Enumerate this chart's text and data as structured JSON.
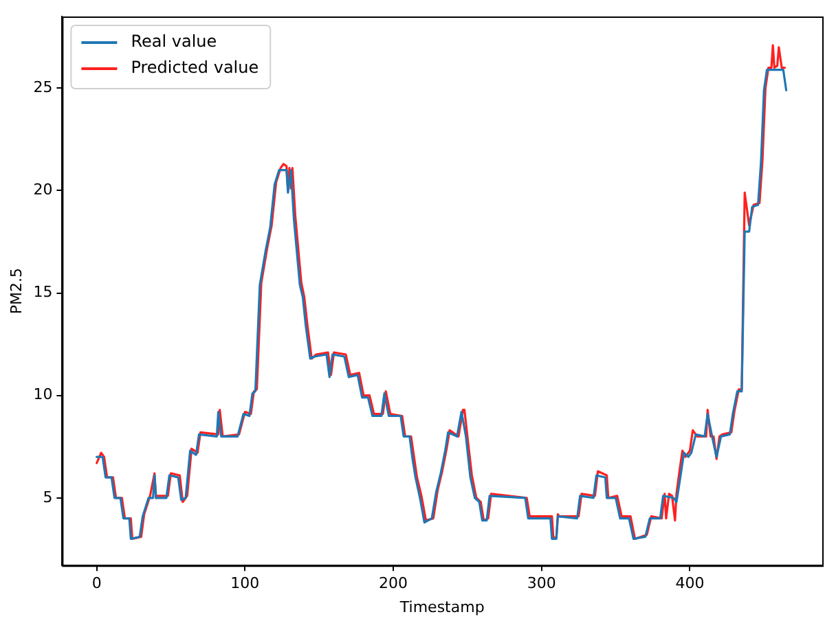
{
  "chart_data": {
    "type": "line",
    "xlabel": "Timestamp",
    "ylabel": "PM2.5",
    "xlim": [
      -23.3,
      489.3
    ],
    "ylim": [
      1.7,
      28.5
    ],
    "xticks": [
      0,
      100,
      200,
      300,
      400
    ],
    "yticks": [
      5,
      10,
      15,
      20,
      25
    ],
    "grid": false,
    "legend": "top left",
    "marker": "none",
    "line_style": "solid",
    "series": [
      {
        "name": "Real value",
        "color": "#1f77b4",
        "x": [
          0,
          4,
          6,
          10,
          12,
          16,
          18,
          22,
          23,
          29,
          31,
          35,
          38,
          39,
          40,
          47,
          49,
          55,
          57,
          60,
          63,
          67,
          69,
          81,
          82,
          84,
          95,
          99,
          103,
          105,
          107,
          110,
          114,
          117,
          120,
          123,
          128,
          129,
          131,
          133,
          137,
          139,
          141,
          144,
          147,
          155,
          157,
          159,
          167,
          170,
          176,
          179,
          183,
          186,
          192,
          194,
          197,
          205,
          207,
          211,
          213,
          215,
          218,
          221,
          226,
          229,
          232,
          235,
          237,
          243,
          246,
          249,
          252,
          255,
          258,
          260,
          263,
          265,
          289,
          291,
          306,
          307,
          310,
          311,
          324,
          326,
          335,
          337,
          343,
          344,
          350,
          353,
          359,
          362,
          370,
          373,
          380,
          382,
          389,
          391,
          394,
          396,
          399,
          401,
          404,
          410,
          412,
          415,
          418,
          421,
          427,
          429,
          432,
          435,
          437,
          440,
          442,
          446,
          448,
          450,
          452,
          463,
          465
        ],
        "values": [
          7,
          7,
          6,
          6,
          5,
          5,
          4,
          4,
          3,
          3.1,
          4.1,
          5,
          5,
          6.1,
          5,
          5,
          6.1,
          6,
          4.9,
          5,
          7.3,
          7.1,
          8.1,
          8,
          9.2,
          8,
          8,
          9.1,
          9,
          10.1,
          10.2,
          15.4,
          17.1,
          18.2,
          20.3,
          21,
          21,
          19.9,
          21,
          18.6,
          15.4,
          14.8,
          13.4,
          11.8,
          11.9,
          12,
          10.9,
          12,
          11.9,
          10.9,
          11,
          9.9,
          9.9,
          9,
          9,
          10.1,
          9,
          9,
          8,
          8,
          6.9,
          6,
          5,
          3.8,
          4,
          5.3,
          6.2,
          7.3,
          8.2,
          8,
          9.2,
          8,
          6,
          5,
          4.8,
          3.9,
          3.9,
          5.1,
          5,
          4,
          4,
          3,
          3,
          4.1,
          4,
          5.1,
          5,
          6.1,
          6,
          5,
          5,
          4,
          4,
          3,
          3.1,
          4,
          4,
          5.1,
          5,
          4.8,
          6.2,
          7.2,
          7,
          7.2,
          8.1,
          8,
          9.1,
          8,
          7,
          8,
          8.1,
          9.1,
          10.2,
          10.2,
          18,
          18,
          19.2,
          19.3,
          21.4,
          24.9,
          25.9,
          25.9,
          24.9
        ]
      },
      {
        "name": "Predicted value",
        "color": "#ff2020",
        "x": [
          0,
          3,
          5,
          7,
          11,
          13,
          17,
          19,
          23,
          24,
          30,
          32,
          36,
          39,
          40,
          41,
          48,
          50,
          56,
          58,
          61,
          64,
          68,
          70,
          82,
          83,
          85,
          96,
          100,
          104,
          106,
          108,
          111,
          115,
          118,
          121,
          124,
          126,
          128,
          129,
          130,
          131,
          132,
          134,
          138,
          140,
          142,
          145,
          148,
          156,
          158,
          160,
          168,
          171,
          177,
          180,
          184,
          187,
          193,
          195,
          198,
          206,
          208,
          212,
          214,
          216,
          219,
          222,
          227,
          230,
          233,
          236,
          238,
          244,
          247,
          248,
          250,
          253,
          256,
          259,
          261,
          264,
          266,
          290,
          292,
          307,
          308,
          310,
          311,
          312,
          325,
          327,
          336,
          338,
          344,
          345,
          351,
          354,
          360,
          363,
          371,
          374,
          381,
          383,
          384,
          386,
          388,
          390,
          391,
          393,
          395,
          397,
          400,
          402,
          405,
          411,
          412,
          414,
          416,
          418,
          420,
          422,
          428,
          430,
          433,
          435,
          437,
          440,
          443,
          447,
          449,
          451,
          453,
          455,
          456,
          457,
          459,
          460,
          462,
          464
        ],
        "values": [
          6.7,
          7.2,
          7,
          6,
          6,
          5,
          5,
          4,
          4,
          3,
          3.1,
          4.2,
          5.1,
          6.2,
          5,
          5.1,
          5.1,
          6.2,
          6.1,
          4.8,
          5.1,
          7.4,
          7.2,
          8.2,
          8.1,
          9.3,
          8,
          8.1,
          9.2,
          9.1,
          10.2,
          10.3,
          15.5,
          17.2,
          18.3,
          20.4,
          21.1,
          21.3,
          21.2,
          20,
          21.1,
          20.1,
          21.1,
          18.7,
          15.5,
          14.8,
          13.5,
          11.8,
          12,
          12.1,
          11,
          12.1,
          12,
          11,
          11.1,
          10,
          10,
          9.1,
          9.1,
          10.2,
          9.1,
          9,
          8,
          8,
          7,
          6,
          5.1,
          3.9,
          4,
          5.4,
          6.3,
          7.4,
          8.3,
          8,
          9.3,
          9.3,
          8,
          6.1,
          5,
          4.8,
          3.9,
          4,
          5.2,
          5,
          4.1,
          4.1,
          3,
          3.1,
          4.2,
          4.1,
          4.1,
          5.2,
          5.1,
          6.3,
          6.1,
          5,
          5.1,
          4.1,
          4.1,
          3,
          3.2,
          4.1,
          4,
          5.2,
          4,
          5.2,
          5.1,
          3.9,
          5.2,
          6.3,
          7.3,
          7,
          7.3,
          8.3,
          8,
          8,
          9.3,
          8,
          8,
          6.9,
          8,
          8.1,
          8.2,
          9.2,
          10.3,
          10.3,
          19.9,
          18.3,
          19.3,
          19.4,
          21.5,
          25,
          26,
          26,
          27.1,
          26,
          26.1,
          27,
          26,
          26
        ]
      }
    ]
  }
}
